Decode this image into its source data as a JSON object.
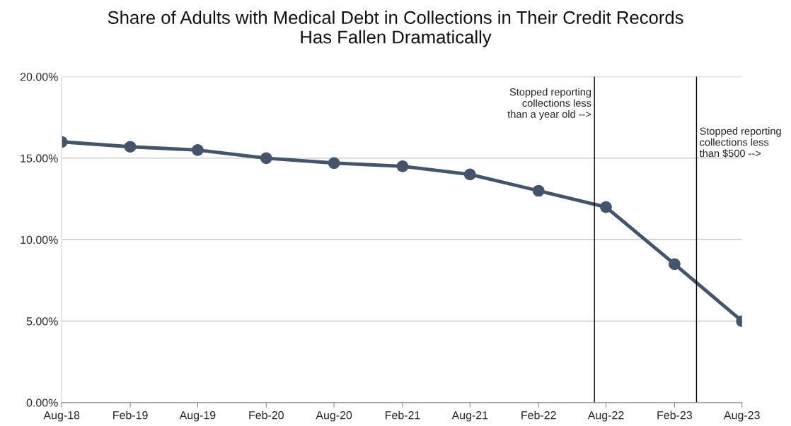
{
  "chart_data": {
    "type": "line",
    "title": "Share of Adults with Medical Debt in Collections in Their Credit Records\nHas Fallen Dramatically",
    "x": [
      "2018-08",
      "2019-02",
      "2019-08",
      "2020-02",
      "2020-08",
      "2021-02",
      "2021-08",
      "2022-02",
      "2022-08",
      "2023-02",
      "2023-08"
    ],
    "series": [
      {
        "color": "#44546a",
        "values": [
          16.0,
          15.7,
          15.5,
          15.0,
          14.7,
          14.5,
          14.0,
          13.0,
          12.0,
          8.5,
          5.0
        ]
      }
    ],
    "xlim": [
      "2018-08",
      "2023-08"
    ],
    "xticks": [
      {
        "value": "2018-08",
        "label": "Aug-18"
      },
      {
        "value": "2019-02",
        "label": "Feb-19"
      },
      {
        "value": "2019-08",
        "label": "Aug-19"
      },
      {
        "value": "2020-02",
        "label": "Feb-20"
      },
      {
        "value": "2020-08",
        "label": "Aug-20"
      },
      {
        "value": "2021-02",
        "label": "Feb-21"
      },
      {
        "value": "2021-08",
        "label": "Aug-21"
      },
      {
        "value": "2022-02",
        "label": "Feb-22"
      },
      {
        "value": "2022-08",
        "label": "Aug-22"
      },
      {
        "value": "2023-02",
        "label": "Feb-23"
      },
      {
        "value": "2023-08",
        "label": "Aug-23"
      }
    ],
    "ylim": [
      0,
      20
    ],
    "yticks": [
      {
        "value": 0,
        "label": "0.00%"
      },
      {
        "value": 5,
        "label": "5.00%"
      },
      {
        "value": 10,
        "label": "10.00%"
      },
      {
        "value": 15,
        "label": "15.00%"
      },
      {
        "value": 20,
        "label": "20.00%"
      }
    ],
    "ref_lines": [
      {
        "axis": "x",
        "value": "2022-07",
        "label": "Stopped reporting\ncollections less\nthan a year old -->",
        "color": "#000000"
      },
      {
        "axis": "x",
        "value": "2023-04",
        "label": "Stopped reporting\ncollections less\nthan $500 -->",
        "color": "#000000"
      }
    ],
    "grid": "y",
    "marker": "circle",
    "line_style": "solid",
    "legend": false
  }
}
